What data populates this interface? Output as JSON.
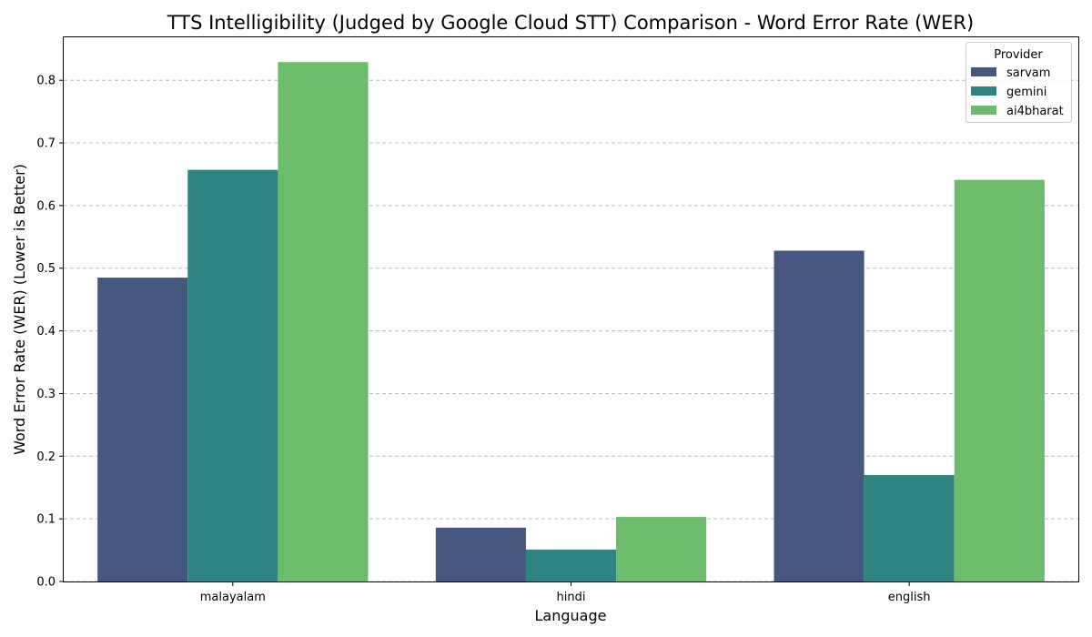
{
  "chart_data": {
    "type": "bar",
    "title": "TTS Intelligibility (Judged by Google Cloud STT) Comparison - Word Error Rate (WER)",
    "xlabel": "Language",
    "ylabel": "Word Error Rate (WER) (Lower is Better)",
    "categories": [
      "malayalam",
      "hindi",
      "english"
    ],
    "series": [
      {
        "name": "sarvam",
        "color": "#46577f",
        "values": [
          0.485,
          0.086,
          0.528
        ]
      },
      {
        "name": "gemini",
        "color": "#2e8480",
        "values": [
          0.657,
          0.051,
          0.17
        ]
      },
      {
        "name": "ai4bharat",
        "color": "#6bbd6c",
        "values": [
          0.829,
          0.103,
          0.641
        ]
      }
    ],
    "ylim": [
      0,
      0.87
    ],
    "yticks": [
      "0.0",
      "0.1",
      "0.2",
      "0.3",
      "0.4",
      "0.5",
      "0.6",
      "0.7",
      "0.8"
    ],
    "grid": "horizontal dashed",
    "legend": {
      "title": "Provider",
      "placement": "top-right"
    }
  }
}
